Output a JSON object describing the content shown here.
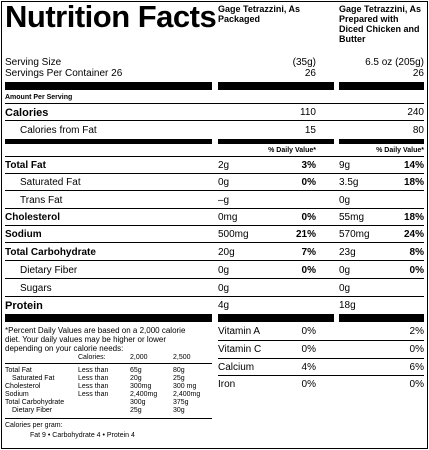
{
  "title": "Nutrition Facts",
  "columns": {
    "packaged": "Gage Tetrazzini, As Packaged",
    "prepared_line1": "Gage Tetrazzini, As",
    "prepared_line2": "Prepared with",
    "prepared_line3": "Diced Chicken and",
    "prepared_line4": "Butter"
  },
  "serving": {
    "size_label": "Serving Size",
    "size_packaged": "(35g)",
    "size_prepared": "6.5 oz (205g)",
    "per_container_label": "Servings Per Container 26",
    "per_container_packaged": "26",
    "per_container_prepared": "26"
  },
  "amount_per_serving": "Amount Per Serving",
  "calories": {
    "label": "Calories",
    "packaged": "110",
    "prepared": "240"
  },
  "calories_fat": {
    "label": "Calories from Fat",
    "packaged": "15",
    "prepared": "80"
  },
  "dv_header": "% Daily Value*",
  "nutrients": [
    {
      "label": "Total Fat",
      "amt1": "2g",
      "dv1": "3%",
      "amt2": "9g",
      "dv2": "14%"
    },
    {
      "label": "Saturated Fat",
      "amt1": "0g",
      "dv1": "0%",
      "amt2": "3.5g",
      "dv2": "18%"
    },
    {
      "label": "Trans Fat",
      "amt1": "–g",
      "dv1": "",
      "amt2": "0g",
      "dv2": ""
    },
    {
      "label": "Cholesterol",
      "amt1": "0mg",
      "dv1": "0%",
      "amt2": "55mg",
      "dv2": "18%"
    },
    {
      "label": "Sodium",
      "amt1": "500mg",
      "dv1": "21%",
      "amt2": "570mg",
      "dv2": "24%"
    },
    {
      "label": "Total Carbohydrate",
      "amt1": "20g",
      "dv1": "7%",
      "amt2": "23g",
      "dv2": "8%"
    },
    {
      "label": "Dietary Fiber",
      "amt1": "0g",
      "dv1": "0%",
      "amt2": "0g",
      "dv2": "0%"
    },
    {
      "label": "Sugars",
      "amt1": "0g",
      "dv1": "",
      "amt2": "0g",
      "dv2": ""
    },
    {
      "label": "Protein",
      "amt1": "4g",
      "dv1": "",
      "amt2": "18g",
      "dv2": ""
    }
  ],
  "vitamins": [
    {
      "label": "Vitamin A",
      "v1": "0%",
      "v2": "2%"
    },
    {
      "label": "Vitamin C",
      "v1": "0%",
      "v2": "0%"
    },
    {
      "label": "Calcium",
      "v1": "4%",
      "v2": "6%"
    },
    {
      "label": "Iron",
      "v1": "0%",
      "v2": "0%"
    }
  ],
  "footnote": {
    "line1": "*Percent Daily Values are based on a 2,000 calorie",
    "line2": "diet. Your daily values may be higher or lower",
    "line3": "depending on your calorie needs:",
    "header_calories": "Calories:",
    "header_2000": "2,000",
    "header_2500": "2,500",
    "rows": [
      {
        "label": "Total Fat",
        "qual": "Less than",
        "v2000": "65g",
        "v2500": "80g"
      },
      {
        "label": "Saturated Fat",
        "qual": "Less than",
        "v2000": "20g",
        "v2500": "25g"
      },
      {
        "label": "Cholesterol",
        "qual": "Less than",
        "v2000": "300mg",
        "v2500": "300 mg"
      },
      {
        "label": "Sodium",
        "qual": "Less than",
        "v2000": "2,400mg",
        "v2500": "2,400mg"
      },
      {
        "label": "Total Carbohydrate",
        "qual": "",
        "v2000": "300g",
        "v2500": "375g"
      },
      {
        "label": "Dietary Fiber",
        "qual": "",
        "v2000": "25g",
        "v2500": "30g"
      }
    ],
    "per_gram_label": "Calories per gram:",
    "per_gram_values": "Fat 9  •  Carbohydrate 4  •  Protein 4"
  }
}
